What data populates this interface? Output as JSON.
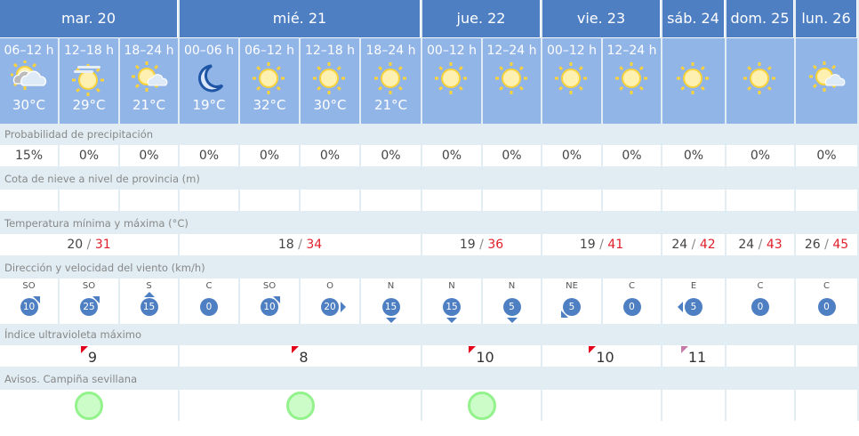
{
  "days": [
    {
      "label": "mar. 20",
      "span": 3
    },
    {
      "label": "mié. 21",
      "span": 4
    },
    {
      "label": "jue. 22",
      "span": 2
    },
    {
      "label": "vie. 23",
      "span": 2
    },
    {
      "label": "sáb. 24",
      "span": 1
    },
    {
      "label": "dom. 25",
      "span": 1
    },
    {
      "label": "lun. 26",
      "span": 1
    }
  ],
  "periods": [
    {
      "hours": "06–12 h",
      "icon": "sun-cloud-icon",
      "temp": "30°C"
    },
    {
      "hours": "12–18 h",
      "icon": "sun-haze-icon",
      "temp": "29°C"
    },
    {
      "hours": "18–24 h",
      "icon": "sun-small-cloud-icon",
      "temp": "21°C"
    },
    {
      "hours": "00–06 h",
      "icon": "moon-icon",
      "temp": "19°C"
    },
    {
      "hours": "06–12 h",
      "icon": "sun-icon",
      "temp": "32°C"
    },
    {
      "hours": "12–18 h",
      "icon": "sun-icon",
      "temp": "30°C"
    },
    {
      "hours": "18–24 h",
      "icon": "sun-icon",
      "temp": "21°C"
    },
    {
      "hours": "00–12 h",
      "icon": "sun-icon",
      "temp": ""
    },
    {
      "hours": "12–24 h",
      "icon": "sun-icon",
      "temp": ""
    },
    {
      "hours": "00–12 h",
      "icon": "sun-icon",
      "temp": ""
    },
    {
      "hours": "12–24 h",
      "icon": "sun-icon",
      "temp": ""
    },
    {
      "hours": "",
      "icon": "sun-icon",
      "temp": ""
    },
    {
      "hours": "",
      "icon": "sun-icon",
      "temp": ""
    },
    {
      "hours": "",
      "icon": "sun-small-cloud-icon",
      "temp": ""
    }
  ],
  "labels": {
    "precip": "Probabilidad de precipitación",
    "snow": "Cota de nieve a nivel de provincia (m)",
    "temp": "Temperatura mínima y máxima (°C)",
    "wind": "Dirección y velocidad del viento (km/h)",
    "uv": "Índice ultravioleta máximo",
    "alerts": "Avisos. Campiña sevillana"
  },
  "precip": [
    "15%",
    "0%",
    "0%",
    "0%",
    "0%",
    "0%",
    "0%",
    "0%",
    "0%",
    "0%",
    "0%",
    "0%",
    "0%",
    "0%"
  ],
  "temps": [
    {
      "min": "20",
      "max": "31",
      "span": 3
    },
    {
      "min": "18",
      "max": "34",
      "span": 4
    },
    {
      "min": "19",
      "max": "36",
      "span": 2
    },
    {
      "min": "19",
      "max": "41",
      "span": 2
    },
    {
      "min": "24",
      "max": "42",
      "span": 1
    },
    {
      "min": "24",
      "max": "43",
      "span": 1
    },
    {
      "min": "26",
      "max": "45",
      "span": 1
    }
  ],
  "temp_sep": "/",
  "wind": [
    {
      "dir": "SO",
      "speed": "10"
    },
    {
      "dir": "SO",
      "speed": "25"
    },
    {
      "dir": "S",
      "speed": "15"
    },
    {
      "dir": "C",
      "speed": "0"
    },
    {
      "dir": "SO",
      "speed": "10"
    },
    {
      "dir": "O",
      "speed": "20"
    },
    {
      "dir": "N",
      "speed": "15"
    },
    {
      "dir": "N",
      "speed": "15"
    },
    {
      "dir": "N",
      "speed": "5"
    },
    {
      "dir": "NE",
      "speed": "5"
    },
    {
      "dir": "C",
      "speed": "0"
    },
    {
      "dir": "E",
      "speed": "5"
    },
    {
      "dir": "C",
      "speed": "0"
    },
    {
      "dir": "C",
      "speed": "0"
    }
  ],
  "uv": [
    {
      "value": "9",
      "span": 3,
      "color": "#e2001a"
    },
    {
      "value": "8",
      "span": 4,
      "color": "#e2001a"
    },
    {
      "value": "10",
      "span": 2,
      "color": "#e2001a"
    },
    {
      "value": "10",
      "span": 2,
      "color": "#e2001a"
    },
    {
      "value": "11",
      "span": 1,
      "color": "#c47ba7"
    },
    {
      "value": "",
      "span": 1
    },
    {
      "value": "",
      "span": 1
    }
  ],
  "alerts": [
    {
      "level": "green",
      "span": 3
    },
    {
      "level": "green",
      "span": 4
    },
    {
      "level": "green",
      "span": 2
    },
    {
      "level": "none",
      "span": 2
    },
    {
      "level": "none",
      "span": 1
    },
    {
      "level": "none",
      "span": 1
    },
    {
      "level": "none",
      "span": 1
    }
  ]
}
